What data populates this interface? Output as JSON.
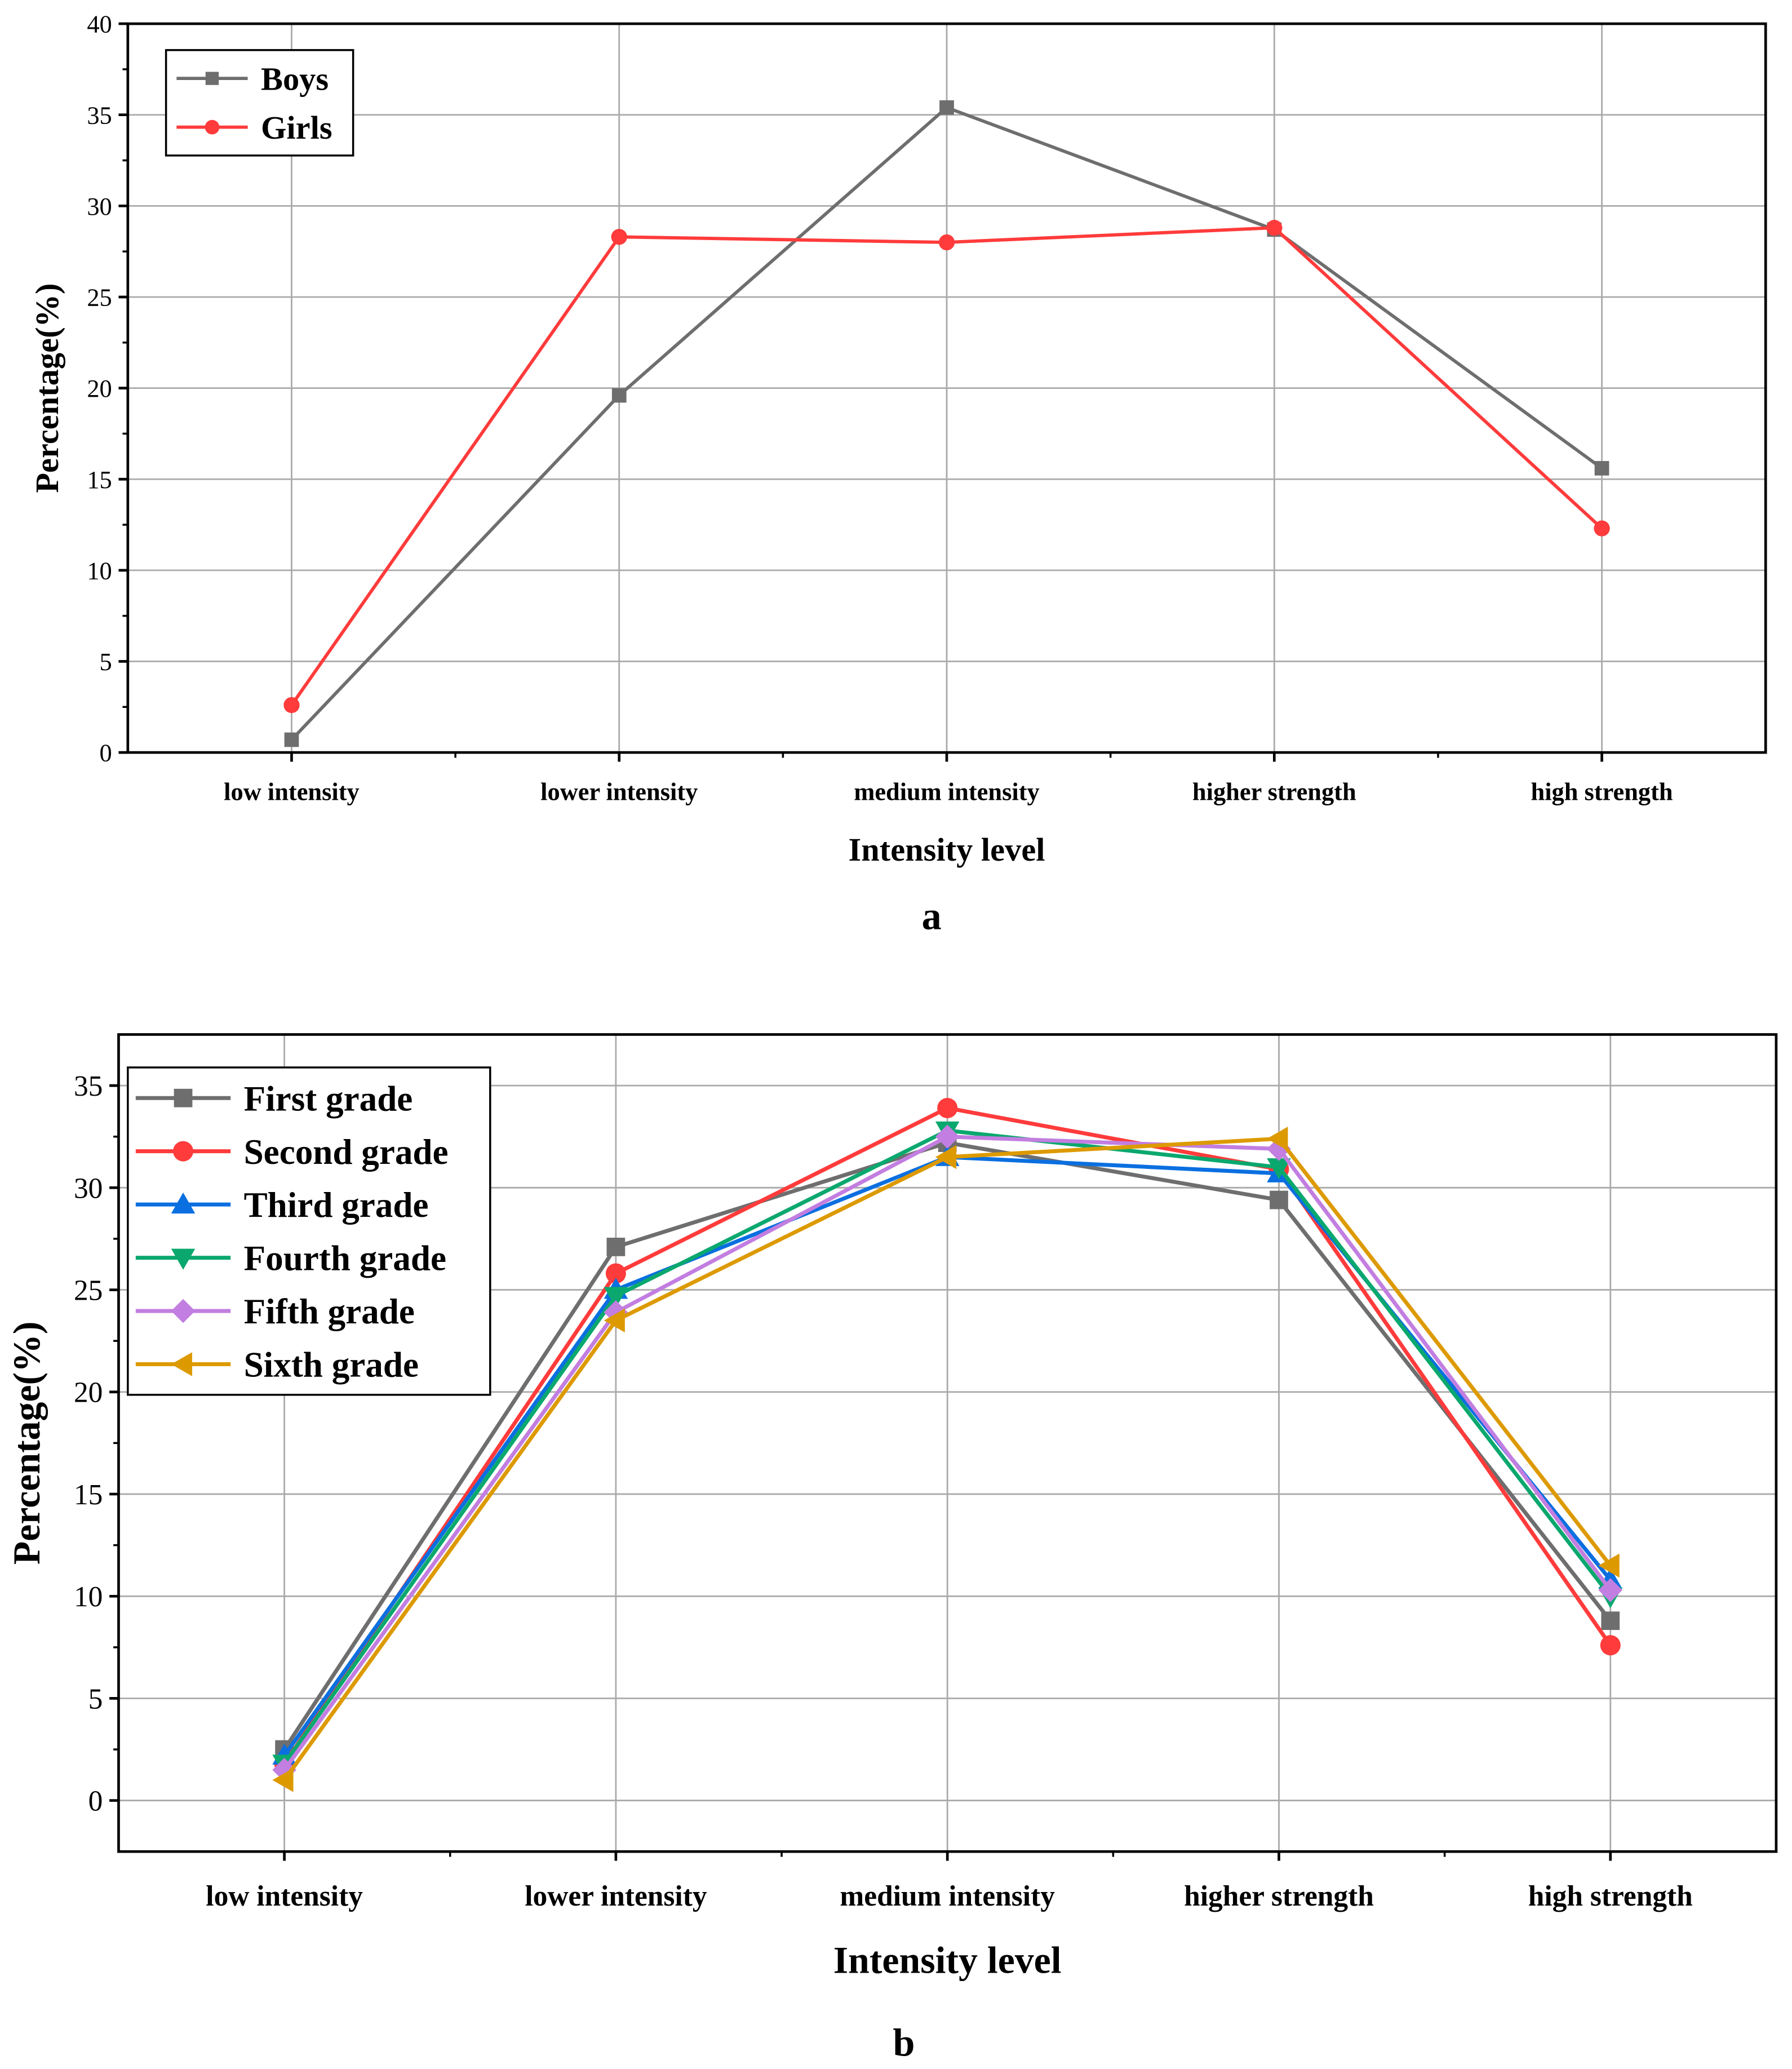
{
  "chart_data": [
    {
      "type": "line",
      "panel_label": "a",
      "xlabel": "Intensity level",
      "ylabel": "Percentage(%)",
      "categories": [
        "low intensity",
        "lower intensity",
        "medium intensity",
        "higher strength",
        "high strength"
      ],
      "ylim": [
        0,
        40
      ],
      "yticks": [
        0,
        5,
        10,
        15,
        20,
        25,
        30,
        35,
        40
      ],
      "grid": true,
      "legend_position": "top-left",
      "series": [
        {
          "name": "Boys",
          "color": "#6e6e6e",
          "marker": "square",
          "values": [
            0.7,
            19.6,
            35.4,
            28.7,
            15.6
          ]
        },
        {
          "name": "Girls",
          "color": "#ff3b3b",
          "marker": "circle",
          "values": [
            2.6,
            28.3,
            28.0,
            28.8,
            12.3
          ]
        }
      ]
    },
    {
      "type": "line",
      "panel_label": "b",
      "xlabel": "Intensity level",
      "ylabel": "Percentage(%)",
      "categories": [
        "low intensity",
        "lower intensity",
        "medium intensity",
        "higher strength",
        "high strength"
      ],
      "ylim": [
        -2.5,
        37.5
      ],
      "yticks": [
        0,
        5,
        10,
        15,
        20,
        25,
        30,
        35
      ],
      "grid": true,
      "legend_position": "top-left",
      "series": [
        {
          "name": "First grade",
          "color": "#6e6e6e",
          "marker": "square",
          "values": [
            2.5,
            27.1,
            32.2,
            29.4,
            8.8
          ]
        },
        {
          "name": "Second grade",
          "color": "#ff3b3b",
          "marker": "circle",
          "values": [
            1.8,
            25.8,
            33.9,
            30.9,
            7.6
          ]
        },
        {
          "name": "Third grade",
          "color": "#0a6fe0",
          "marker": "triangle-up",
          "values": [
            2.2,
            25.0,
            31.5,
            30.7,
            10.8
          ]
        },
        {
          "name": "Fourth grade",
          "color": "#0aa86e",
          "marker": "triangle-down",
          "values": [
            1.8,
            24.7,
            32.8,
            31.0,
            10.0
          ]
        },
        {
          "name": "Fifth grade",
          "color": "#c27ee0",
          "marker": "diamond",
          "values": [
            1.5,
            23.9,
            32.5,
            31.9,
            10.3
          ]
        },
        {
          "name": "Sixth grade",
          "color": "#dd9a00",
          "marker": "triangle-left",
          "values": [
            1.0,
            23.5,
            31.5,
            32.4,
            11.5
          ]
        }
      ]
    }
  ]
}
